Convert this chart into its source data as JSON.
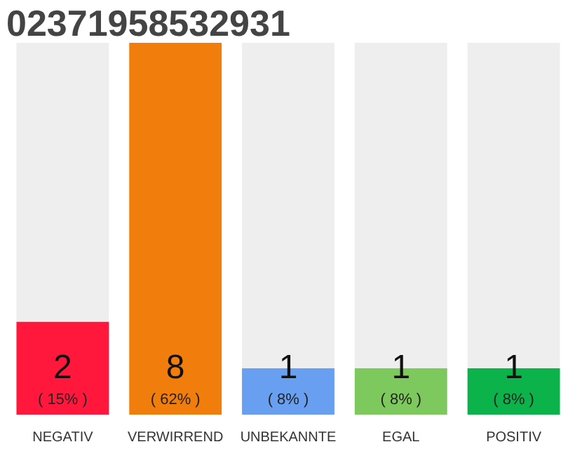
{
  "chart_data": {
    "type": "bar",
    "title": "02371958532931",
    "stacked": true,
    "ylim": [
      0,
      8
    ],
    "tick_labels": "x",
    "grid": false,
    "categories": [
      "NEGATIV",
      "VERWIRREND",
      "UNBEKANNTE",
      "EGAL",
      "POSITIV"
    ],
    "series": [
      {
        "colors": [
          "#ff173c",
          "#f07d0c",
          "#699ff0",
          "#7dc95e",
          "#0bb34a"
        ],
        "values": [
          2,
          8,
          1,
          1,
          1
        ],
        "value_labels": [
          "2\n( 15% )",
          "8\n( 62% )",
          "1\n( 8% )",
          "1\n( 8% )",
          "1\n( 8% )"
        ]
      },
      {
        "color": "#eeeeee",
        "values": [
          6,
          0,
          7,
          7,
          7
        ]
      }
    ]
  }
}
